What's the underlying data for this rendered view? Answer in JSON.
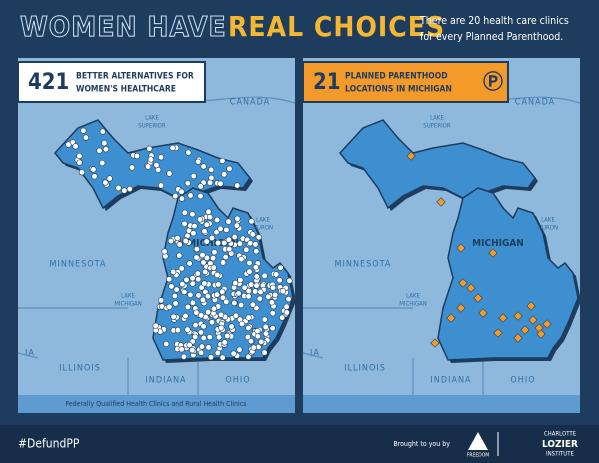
{
  "header": {
    "title_a": "WOMEN HAVE",
    "title_b": "REAL CHOICES",
    "subtitle_1": "There are 20 health care clinics",
    "subtitle_2": "for every Planned Parenthood."
  },
  "panels": [
    {
      "count": 421,
      "label_1": "BETTER ALTERNATIVES FOR",
      "label_2": "WOMEN'S HEALTHCARE",
      "caption": "Federally Qualified Health Clinics and Rural Health Clinics"
    },
    {
      "count": 21,
      "label_1": "PLANNED PARENTHOOD",
      "label_2": "LOCATIONS IN MICHIGAN"
    }
  ],
  "map_labels": {
    "canada": "CANADA",
    "lake": "LAKE",
    "superior": "SUPERIOR",
    "huron": "HURON",
    "michigan_lake": "MICHIGAN",
    "minnesota": "MINNESOTA",
    "michigan": "MICHIGAN",
    "ia": "IA",
    "illinois": "ILLINOIS",
    "indiana": "INDIANA",
    "ohio": "OHIO"
  },
  "footer": {
    "hashtag": "#DefundPP",
    "brought": "Brought to you by",
    "freedom": "FREEDOM",
    "org_1": "CHARLOTTE",
    "org_2": "LOZIER",
    "org_3": "INSTITUTE"
  }
}
